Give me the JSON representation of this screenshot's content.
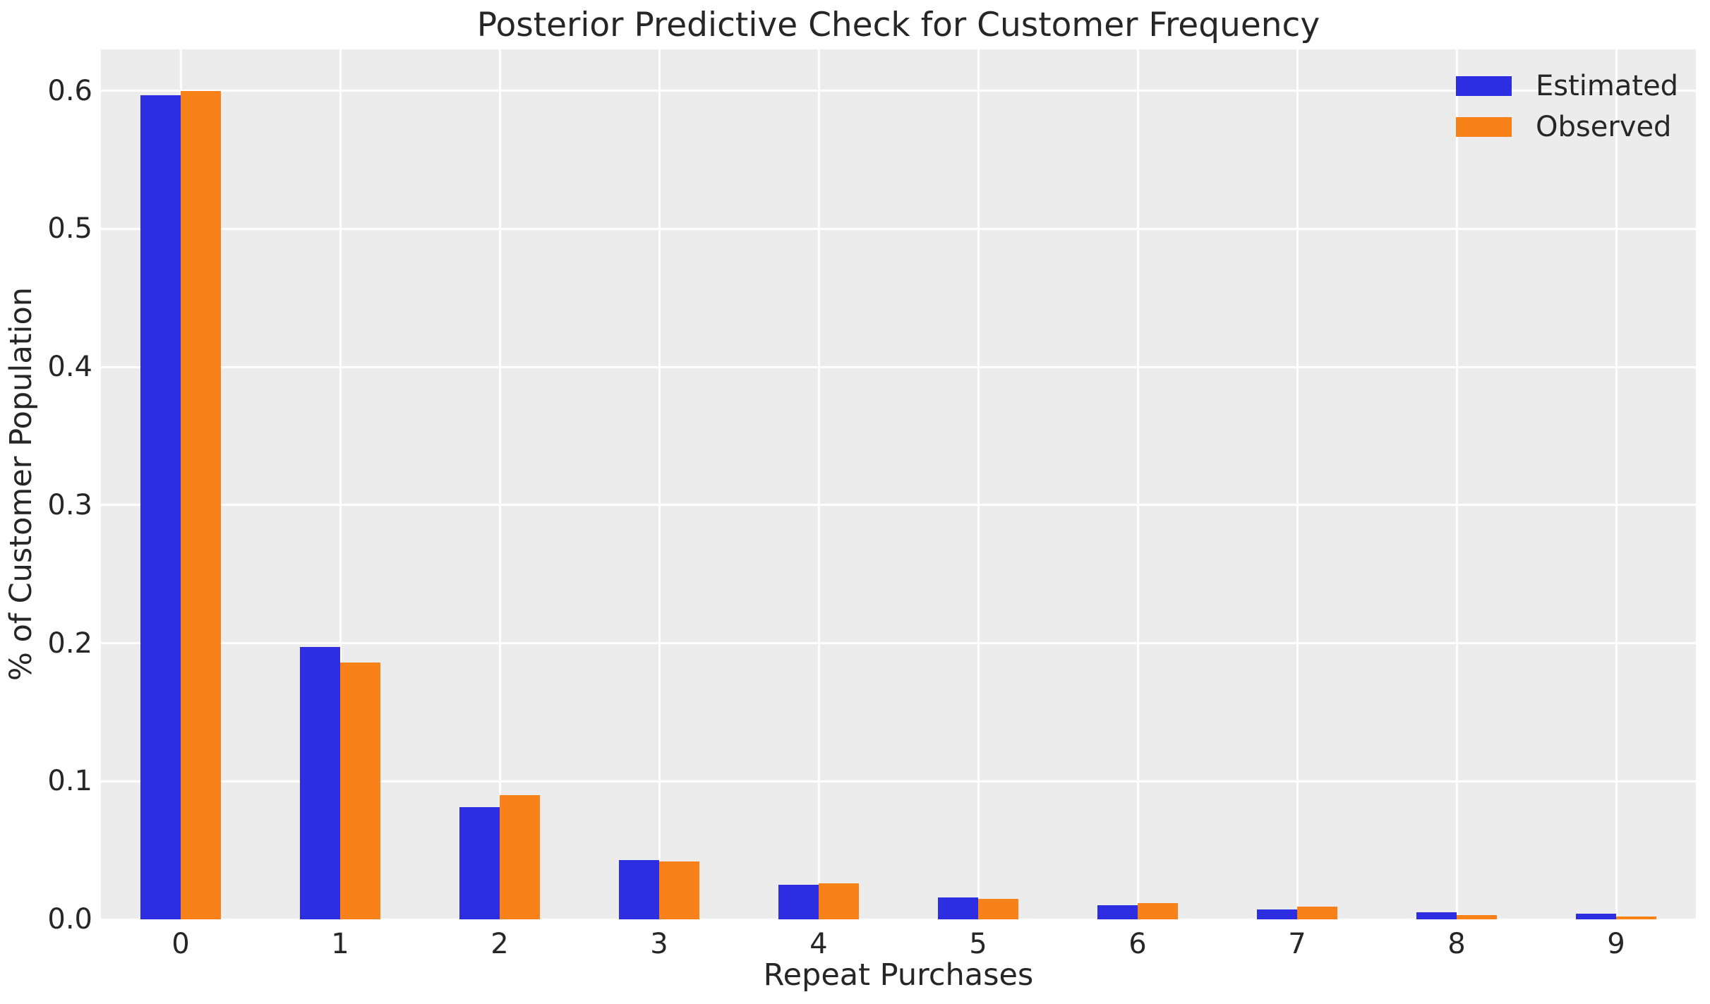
{
  "title": "Posterior Predictive Check for Customer Frequency",
  "chart_data": {
    "type": "bar",
    "title": "Posterior Predictive Check for Customer Frequency",
    "xlabel": "Repeat Purchases",
    "ylabel": "% of Customer Population",
    "categories": [
      "0",
      "1",
      "2",
      "3",
      "4",
      "5",
      "6",
      "7",
      "8",
      "9"
    ],
    "series": [
      {
        "name": "Estimated",
        "color": "#2d2de2",
        "values": [
          0.597,
          0.197,
          0.081,
          0.043,
          0.025,
          0.016,
          0.01,
          0.007,
          0.005,
          0.004
        ]
      },
      {
        "name": "Observed",
        "color": "#f8811a",
        "values": [
          0.6,
          0.186,
          0.09,
          0.042,
          0.026,
          0.015,
          0.012,
          0.009,
          0.003,
          0.002
        ]
      }
    ],
    "ylim": [
      0,
      0.63
    ],
    "yticks": [
      "0.0",
      "0.1",
      "0.2",
      "0.3",
      "0.4",
      "0.5",
      "0.6"
    ],
    "grid": true,
    "legend_position": "upper right",
    "plot_background": "#ececec",
    "grid_color": "#ffffff",
    "text_color": "#262626"
  }
}
